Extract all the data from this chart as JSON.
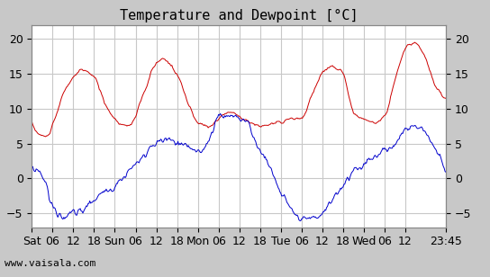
{
  "title": "Temperature and Dewpoint [°C]",
  "ylabel_right": "",
  "x_tick_labels": [
    "Sat",
    "06",
    "12",
    "18",
    "Sun",
    "06",
    "12",
    "18",
    "Mon",
    "06",
    "12",
    "18",
    "Tue",
    "06",
    "12",
    "18",
    "Wed",
    "06",
    "12",
    "23:45"
  ],
  "y_ticks": [
    -5,
    0,
    5,
    10,
    15,
    20
  ],
  "ylim": [
    -7,
    22
  ],
  "background_color": "#c8c8c8",
  "plot_bg_color": "#ffffff",
  "grid_color": "#c8c8c8",
  "temp_color": "#cc0000",
  "dewpoint_color": "#0000cc",
  "watermark": "www.vaisala.com",
  "title_fontsize": 11,
  "tick_fontsize": 9,
  "watermark_fontsize": 8
}
